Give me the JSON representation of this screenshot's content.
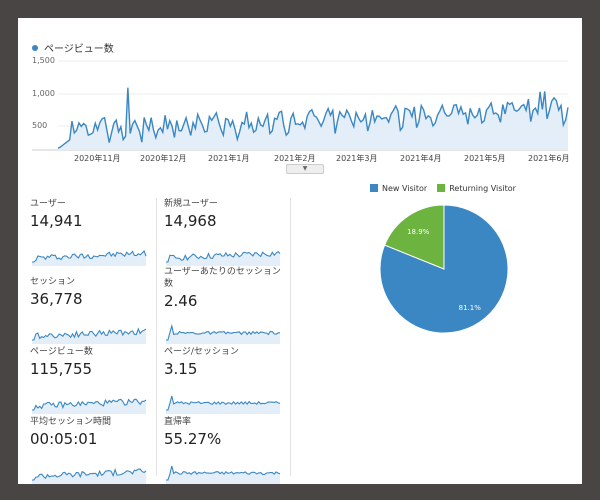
{
  "timeline": {
    "legend": "ページビュー数",
    "y_ticks": [
      "1,500",
      "1,000",
      "500"
    ],
    "x_ticks": [
      "2020年11月",
      "2020年12月",
      "2021年1月",
      "2021年2月",
      "2021年3月",
      "2021年4月",
      "2021年5月",
      "2021年6月"
    ],
    "color": "#3a87c3"
  },
  "metrics": [
    {
      "label": "ユーザー",
      "value": "14,941"
    },
    {
      "label": "新規ユーザー",
      "value": "14,968"
    },
    {
      "label": "セッション",
      "value": "36,778"
    },
    {
      "label": "ユーザーあたりのセッション数",
      "value": "2.46"
    },
    {
      "label": "ページビュー数",
      "value": "115,755"
    },
    {
      "label": "ページ/セッション",
      "value": "3.15"
    },
    {
      "label": "平均セッション時間",
      "value": "00:05:01"
    },
    {
      "label": "直帰率",
      "value": "55.27%"
    }
  ],
  "pie": {
    "legend": [
      {
        "name": "New Visitor",
        "color": "#3a87c3"
      },
      {
        "name": "Returning Visitor",
        "color": "#6cb33f"
      }
    ],
    "slices": [
      {
        "label": "81.1%",
        "value": 81.1
      },
      {
        "label": "18.9%",
        "value": 18.9
      }
    ]
  }
}
